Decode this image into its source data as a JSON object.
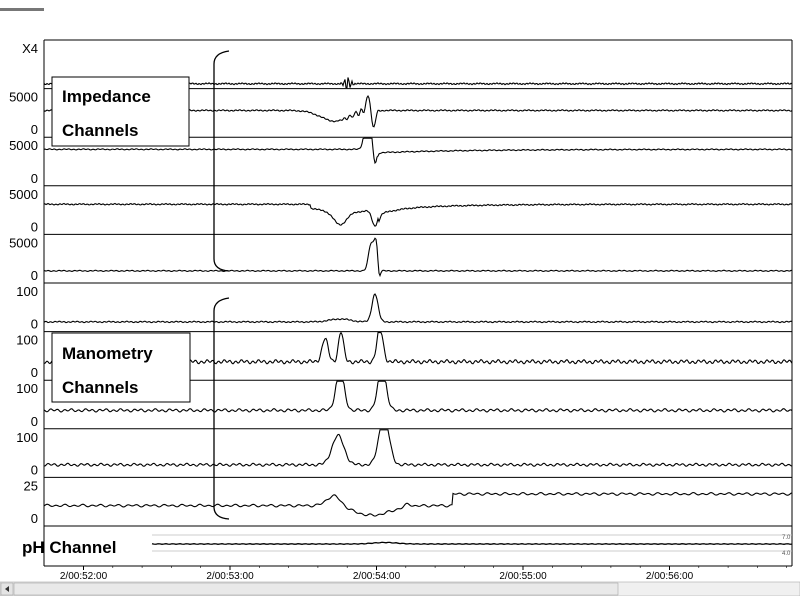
{
  "chart_data": {
    "type": "line",
    "x_ticks": [
      "2/00:52:00",
      "2/00:53:00",
      "2/00:54:00",
      "2/00:55:00",
      "2/00:56:00"
    ],
    "panels": [
      {
        "name": "impedance-1",
        "group": "impedance",
        "top_label": "X4",
        "bottom_label": ""
      },
      {
        "name": "impedance-2",
        "group": "impedance",
        "top_label": "5000",
        "bottom_label": "0"
      },
      {
        "name": "impedance-3",
        "group": "impedance",
        "top_label": "5000",
        "bottom_label": "0"
      },
      {
        "name": "impedance-4",
        "group": "impedance",
        "top_label": "5000",
        "bottom_label": "0"
      },
      {
        "name": "impedance-5",
        "group": "impedance",
        "top_label": "5000",
        "bottom_label": "0"
      },
      {
        "name": "manometry-1",
        "group": "manometry",
        "top_label": "100",
        "bottom_label": "0"
      },
      {
        "name": "manometry-2",
        "group": "manometry",
        "top_label": "100",
        "bottom_label": "0"
      },
      {
        "name": "manometry-3",
        "group": "manometry",
        "top_label": "100",
        "bottom_label": "0"
      },
      {
        "name": "manometry-4",
        "group": "manometry",
        "top_label": "100",
        "bottom_label": "0"
      },
      {
        "name": "manometry-5",
        "group": "manometry",
        "top_label": "25",
        "bottom_label": "0"
      }
    ],
    "annotations": {
      "impedance_line1": "Impedance",
      "impedance_line2": "Channels",
      "manometry_line1": "Manometry",
      "manometry_line2": "Channels",
      "ph_channel": "pH Channel",
      "ph_tick_top": "7.0",
      "ph_tick_bottom": "4.0"
    }
  }
}
